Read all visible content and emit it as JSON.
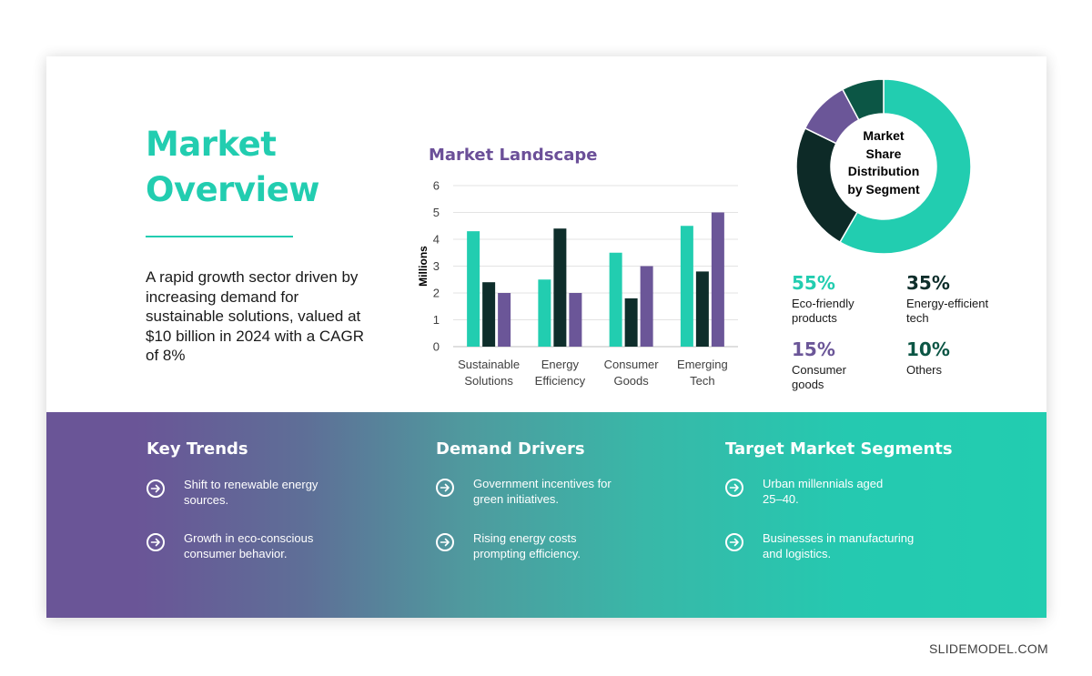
{
  "slide": {
    "title_line1": "Market",
    "title_line2": "Overview",
    "description": "A rapid growth sector driven by increasing demand for sustainable solutions, valued at $10 billion in 2024 with a CAGR of 8%"
  },
  "chart_data": [
    {
      "type": "bar",
      "title": "Market Landscape",
      "xlabel": "",
      "ylabel": "Millions",
      "ylim": [
        0,
        6
      ],
      "yticks": [
        "0",
        "1",
        "2",
        "3",
        "4",
        "5",
        "6"
      ],
      "grid": true,
      "categories": [
        [
          "Sustainable",
          "Solutions"
        ],
        [
          "Energy",
          "Efficiency"
        ],
        [
          "Consumer",
          "Goods"
        ],
        [
          "Emerging",
          "Tech"
        ]
      ],
      "series": [
        {
          "color": "#22cdb0",
          "values": [
            4.3,
            2.5,
            3.5,
            4.5
          ]
        },
        {
          "color": "#0e2e2b",
          "values": [
            2.4,
            4.4,
            1.8,
            2.8
          ]
        },
        {
          "color": "#6b5698",
          "values": [
            2.0,
            2.0,
            3.0,
            5.0
          ]
        }
      ]
    },
    {
      "type": "pie",
      "title": "Market Share Distribution by Segment",
      "labels": [
        "Eco-friendly products",
        "Energy-efficient tech",
        "Consumer goods",
        "Others"
      ],
      "values": [
        55,
        35,
        15,
        10
      ],
      "colors": [
        "#22cdb0",
        "#0d2a27",
        "#6b5698",
        "#0c5645"
      ]
    }
  ],
  "donut": {
    "center_line1": "Market",
    "center_line2": "Share",
    "center_line3": "Distribution",
    "center_line4": "by Segment"
  },
  "stats": [
    {
      "pct": "55%",
      "label_line1": "Eco-friendly",
      "label_line2": "products",
      "color": "#22cdb0"
    },
    {
      "pct": "35%",
      "label_line1": "Energy-efficient",
      "label_line2": "tech",
      "color": "#0e2e2b"
    },
    {
      "pct": "15%",
      "label_line1": "Consumer",
      "label_line2": "goods",
      "color": "#6b5698"
    },
    {
      "pct": "10%",
      "label_line1": "Others",
      "label_line2": "",
      "color": "#0c5645"
    }
  ],
  "band": {
    "columns": [
      {
        "heading": "Key Trends",
        "items": [
          {
            "line1": "Shift to renewable energy",
            "line2": "sources."
          },
          {
            "line1": "Growth in eco-conscious",
            "line2": "consumer behavior."
          }
        ]
      },
      {
        "heading": "Demand Drivers",
        "items": [
          {
            "line1": "Government incentives for",
            "line2": "green initiatives."
          },
          {
            "line1": "Rising energy costs",
            "line2": "prompting efficiency."
          }
        ]
      },
      {
        "heading": "Target Market Segments",
        "items": [
          {
            "line1": "Urban millennials aged",
            "line2": "25–40."
          },
          {
            "line1": "Businesses in manufacturing",
            "line2": "and logistics."
          }
        ]
      }
    ]
  },
  "footer": {
    "brand": "SLIDEMODEL.COM"
  },
  "colors": {
    "teal": "#22cdb0",
    "purple": "#6b5698",
    "dark": "#0e2e2b"
  },
  "icons": {
    "bullet": "arrow-right-circle-icon"
  }
}
